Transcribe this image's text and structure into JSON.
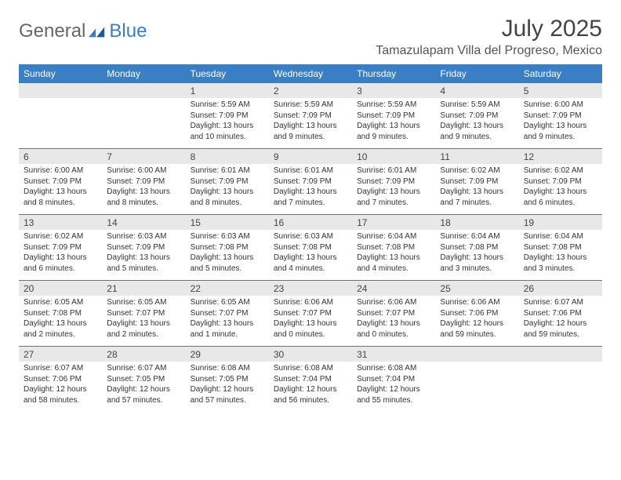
{
  "brand": {
    "part1": "General",
    "part2": "Blue"
  },
  "title": "July 2025",
  "location": "Tamazulapam Villa del Progreso, Mexico",
  "colors": {
    "header_bg": "#3a7fc4",
    "header_text": "#ffffff",
    "daynum_bg": "#e8e8e8",
    "divider": "#3a7fc4",
    "body_text": "#333333"
  },
  "day_headers": [
    "Sunday",
    "Monday",
    "Tuesday",
    "Wednesday",
    "Thursday",
    "Friday",
    "Saturday"
  ],
  "weeks": [
    [
      {
        "n": "",
        "sr": "",
        "ss": "",
        "dl": ""
      },
      {
        "n": "",
        "sr": "",
        "ss": "",
        "dl": ""
      },
      {
        "n": "1",
        "sr": "Sunrise: 5:59 AM",
        "ss": "Sunset: 7:09 PM",
        "dl": "Daylight: 13 hours and 10 minutes."
      },
      {
        "n": "2",
        "sr": "Sunrise: 5:59 AM",
        "ss": "Sunset: 7:09 PM",
        "dl": "Daylight: 13 hours and 9 minutes."
      },
      {
        "n": "3",
        "sr": "Sunrise: 5:59 AM",
        "ss": "Sunset: 7:09 PM",
        "dl": "Daylight: 13 hours and 9 minutes."
      },
      {
        "n": "4",
        "sr": "Sunrise: 5:59 AM",
        "ss": "Sunset: 7:09 PM",
        "dl": "Daylight: 13 hours and 9 minutes."
      },
      {
        "n": "5",
        "sr": "Sunrise: 6:00 AM",
        "ss": "Sunset: 7:09 PM",
        "dl": "Daylight: 13 hours and 9 minutes."
      }
    ],
    [
      {
        "n": "6",
        "sr": "Sunrise: 6:00 AM",
        "ss": "Sunset: 7:09 PM",
        "dl": "Daylight: 13 hours and 8 minutes."
      },
      {
        "n": "7",
        "sr": "Sunrise: 6:00 AM",
        "ss": "Sunset: 7:09 PM",
        "dl": "Daylight: 13 hours and 8 minutes."
      },
      {
        "n": "8",
        "sr": "Sunrise: 6:01 AM",
        "ss": "Sunset: 7:09 PM",
        "dl": "Daylight: 13 hours and 8 minutes."
      },
      {
        "n": "9",
        "sr": "Sunrise: 6:01 AM",
        "ss": "Sunset: 7:09 PM",
        "dl": "Daylight: 13 hours and 7 minutes."
      },
      {
        "n": "10",
        "sr": "Sunrise: 6:01 AM",
        "ss": "Sunset: 7:09 PM",
        "dl": "Daylight: 13 hours and 7 minutes."
      },
      {
        "n": "11",
        "sr": "Sunrise: 6:02 AM",
        "ss": "Sunset: 7:09 PM",
        "dl": "Daylight: 13 hours and 7 minutes."
      },
      {
        "n": "12",
        "sr": "Sunrise: 6:02 AM",
        "ss": "Sunset: 7:09 PM",
        "dl": "Daylight: 13 hours and 6 minutes."
      }
    ],
    [
      {
        "n": "13",
        "sr": "Sunrise: 6:02 AM",
        "ss": "Sunset: 7:09 PM",
        "dl": "Daylight: 13 hours and 6 minutes."
      },
      {
        "n": "14",
        "sr": "Sunrise: 6:03 AM",
        "ss": "Sunset: 7:09 PM",
        "dl": "Daylight: 13 hours and 5 minutes."
      },
      {
        "n": "15",
        "sr": "Sunrise: 6:03 AM",
        "ss": "Sunset: 7:08 PM",
        "dl": "Daylight: 13 hours and 5 minutes."
      },
      {
        "n": "16",
        "sr": "Sunrise: 6:03 AM",
        "ss": "Sunset: 7:08 PM",
        "dl": "Daylight: 13 hours and 4 minutes."
      },
      {
        "n": "17",
        "sr": "Sunrise: 6:04 AM",
        "ss": "Sunset: 7:08 PM",
        "dl": "Daylight: 13 hours and 4 minutes."
      },
      {
        "n": "18",
        "sr": "Sunrise: 6:04 AM",
        "ss": "Sunset: 7:08 PM",
        "dl": "Daylight: 13 hours and 3 minutes."
      },
      {
        "n": "19",
        "sr": "Sunrise: 6:04 AM",
        "ss": "Sunset: 7:08 PM",
        "dl": "Daylight: 13 hours and 3 minutes."
      }
    ],
    [
      {
        "n": "20",
        "sr": "Sunrise: 6:05 AM",
        "ss": "Sunset: 7:08 PM",
        "dl": "Daylight: 13 hours and 2 minutes."
      },
      {
        "n": "21",
        "sr": "Sunrise: 6:05 AM",
        "ss": "Sunset: 7:07 PM",
        "dl": "Daylight: 13 hours and 2 minutes."
      },
      {
        "n": "22",
        "sr": "Sunrise: 6:05 AM",
        "ss": "Sunset: 7:07 PM",
        "dl": "Daylight: 13 hours and 1 minute."
      },
      {
        "n": "23",
        "sr": "Sunrise: 6:06 AM",
        "ss": "Sunset: 7:07 PM",
        "dl": "Daylight: 13 hours and 0 minutes."
      },
      {
        "n": "24",
        "sr": "Sunrise: 6:06 AM",
        "ss": "Sunset: 7:07 PM",
        "dl": "Daylight: 13 hours and 0 minutes."
      },
      {
        "n": "25",
        "sr": "Sunrise: 6:06 AM",
        "ss": "Sunset: 7:06 PM",
        "dl": "Daylight: 12 hours and 59 minutes."
      },
      {
        "n": "26",
        "sr": "Sunrise: 6:07 AM",
        "ss": "Sunset: 7:06 PM",
        "dl": "Daylight: 12 hours and 59 minutes."
      }
    ],
    [
      {
        "n": "27",
        "sr": "Sunrise: 6:07 AM",
        "ss": "Sunset: 7:06 PM",
        "dl": "Daylight: 12 hours and 58 minutes."
      },
      {
        "n": "28",
        "sr": "Sunrise: 6:07 AM",
        "ss": "Sunset: 7:05 PM",
        "dl": "Daylight: 12 hours and 57 minutes."
      },
      {
        "n": "29",
        "sr": "Sunrise: 6:08 AM",
        "ss": "Sunset: 7:05 PM",
        "dl": "Daylight: 12 hours and 57 minutes."
      },
      {
        "n": "30",
        "sr": "Sunrise: 6:08 AM",
        "ss": "Sunset: 7:04 PM",
        "dl": "Daylight: 12 hours and 56 minutes."
      },
      {
        "n": "31",
        "sr": "Sunrise: 6:08 AM",
        "ss": "Sunset: 7:04 PM",
        "dl": "Daylight: 12 hours and 55 minutes."
      },
      {
        "n": "",
        "sr": "",
        "ss": "",
        "dl": ""
      },
      {
        "n": "",
        "sr": "",
        "ss": "",
        "dl": ""
      }
    ]
  ]
}
